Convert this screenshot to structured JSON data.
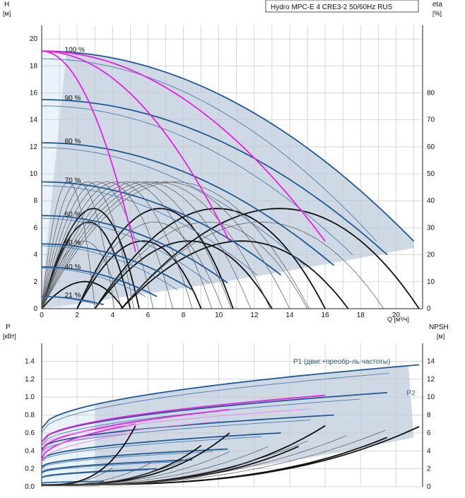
{
  "chart_data": [
    {
      "type": "line",
      "title": "Hydro MPC-E 4 CRE3-2 50/60Hz RUS",
      "xlabel": "Q [м³/ч]",
      "ylabel": "H",
      "ylabel_unit": "[м]",
      "y2label": "eta",
      "y2label_unit": "[%]",
      "xlim": [
        0,
        21.5
      ],
      "ylim": [
        0,
        21
      ],
      "y2lim": [
        0,
        105
      ],
      "x_ticks": [
        0,
        2,
        4,
        6,
        8,
        10,
        12,
        14,
        16,
        18,
        20
      ],
      "y_ticks": [
        0,
        2,
        4,
        6,
        8,
        10,
        12,
        14,
        16,
        18,
        20
      ],
      "y2_ticks": [
        0,
        10,
        20,
        30,
        40,
        50,
        60,
        70,
        80
      ],
      "speed_labels": [
        {
          "text": "100 %",
          "q": 1.3,
          "h": 19.2
        },
        {
          "text": "90 %",
          "q": 1.3,
          "h": 15.6
        },
        {
          "text": "80 %",
          "q": 1.3,
          "h": 12.4
        },
        {
          "text": "70 %",
          "q": 1.3,
          "h": 9.5
        },
        {
          "text": "60 %",
          "q": 1.3,
          "h": 7.0
        },
        {
          "text": "50 %",
          "q": 1.3,
          "h": 4.9
        },
        {
          "text": "40 %",
          "q": 1.3,
          "h": 3.1
        },
        {
          "text": "21 %",
          "q": 1.3,
          "h": 1.0
        }
      ],
      "pump_curves": [
        {
          "speed": "100 %",
          "h0": 19.1,
          "qmax": 21.0,
          "hend": 5.0
        },
        {
          "speed": "90 %",
          "h0": 15.5,
          "qmax": 19.5,
          "hend": 4.0
        },
        {
          "speed": "80 %",
          "h0": 12.3,
          "qmax": 16.5,
          "hend": 3.2
        },
        {
          "speed": "70 %",
          "h0": 9.4,
          "qmax": 13.5,
          "hend": 2.5
        },
        {
          "speed": "60 %",
          "h0": 6.9,
          "qmax": 10.5,
          "hend": 1.9
        },
        {
          "speed": "50 %",
          "h0": 4.8,
          "qmax": 8.5,
          "hend": 1.4
        },
        {
          "speed": "40 %",
          "h0": 3.1,
          "qmax": 6.5,
          "hend": 0.9
        },
        {
          "speed": "21 %",
          "h0": 0.9,
          "qmax": 3.5,
          "hend": 0.3
        }
      ],
      "single_pump_curves": [
        {
          "pumps": 1,
          "qmax": 5.3,
          "hend": 4.2
        },
        {
          "pumps": 2,
          "qmax": 10.6,
          "hend": 5.0
        },
        {
          "pumps": 3,
          "qmax": 16.0,
          "hend": 5.0
        }
      ],
      "efficiency_curves": [
        {
          "q0": 0.0,
          "q1": 5.5,
          "peak": 37
        },
        {
          "q0": 0.0,
          "q1": 5.0,
          "peak": 32
        },
        {
          "q0": 0.0,
          "q1": 4.5,
          "peak": 25
        },
        {
          "q0": 0.0,
          "q1": 4.6,
          "peak": 10
        },
        {
          "q0": 2.0,
          "q1": 10.8,
          "peak": 37
        },
        {
          "q0": 2.0,
          "q1": 10.2,
          "peak": 32
        },
        {
          "q0": 2.0,
          "q1": 9.0,
          "peak": 25
        },
        {
          "q0": 3.0,
          "q1": 16.0,
          "peak": 37
        },
        {
          "q0": 3.0,
          "q1": 15.0,
          "peak": 32
        },
        {
          "q0": 3.0,
          "q1": 13.0,
          "peak": 25
        },
        {
          "q0": 4.5,
          "q1": 21.3,
          "peak": 37
        },
        {
          "q0": 4.5,
          "q1": 19.3,
          "peak": 32
        },
        {
          "q0": 4.5,
          "q1": 17.3,
          "peak": 25
        }
      ]
    },
    {
      "type": "line",
      "ylabel": "P",
      "ylabel_unit": "[кВт]",
      "y2label": "NPSH",
      "y2label_unit": "[м]",
      "xlim": [
        0,
        21.5
      ],
      "ylim": [
        0,
        1.6
      ],
      "y2lim": [
        0,
        16
      ],
      "y_ticks": [
        "0.0",
        "0.2",
        "0.4",
        "0.6",
        "0.8",
        "1.0",
        "1.2",
        "1.4"
      ],
      "y2_ticks": [
        0,
        2,
        4,
        6,
        8,
        10,
        12,
        14
      ],
      "annotations": [
        {
          "text": "P1 (двиг.+преобр-ль частоты)",
          "q": 14.2,
          "p": 1.37
        },
        {
          "text": "P2",
          "q": 20.6,
          "p": 1.02
        }
      ],
      "power_curves": [
        {
          "p0": 0.65,
          "q1": 21.3,
          "p1": 1.36
        },
        {
          "p0": 0.5,
          "q1": 19.5,
          "p1": 1.05
        },
        {
          "p0": 0.42,
          "q1": 16.5,
          "p1": 0.8
        },
        {
          "p0": 0.3,
          "q1": 13.5,
          "p1": 0.6
        },
        {
          "p0": 0.22,
          "q1": 10.5,
          "p1": 0.42
        },
        {
          "p0": 0.16,
          "q1": 8.5,
          "p1": 0.3
        },
        {
          "p0": 0.1,
          "q1": 6.5,
          "p1": 0.2
        },
        {
          "p0": 0.04,
          "q1": 3.5,
          "p1": 0.06
        }
      ],
      "single_power_curves": [
        {
          "pumps": 1,
          "q1": 5.3,
          "p1": 0.7
        },
        {
          "pumps": 2,
          "q1": 10.6,
          "p1": 0.86
        },
        {
          "pumps": 3,
          "q1": 16.0,
          "p1": 1.02
        }
      ],
      "npsh_curves": [
        {
          "q0": 0.0,
          "q1": 5.3,
          "n1": 6.6
        },
        {
          "q0": 0.0,
          "q1": 10.6,
          "n1": 5.8
        },
        {
          "q0": 0.0,
          "q1": 16.0,
          "n1": 6.6
        },
        {
          "q0": 0.0,
          "q1": 21.3,
          "n1": 6.5
        },
        {
          "q0": 0.0,
          "q1": 14.5,
          "n1": 4.3
        },
        {
          "q0": 0.0,
          "q1": 19.5,
          "n1": 5.3
        },
        {
          "q0": 0.0,
          "q1": 9.0,
          "n1": 4.4
        }
      ]
    }
  ]
}
